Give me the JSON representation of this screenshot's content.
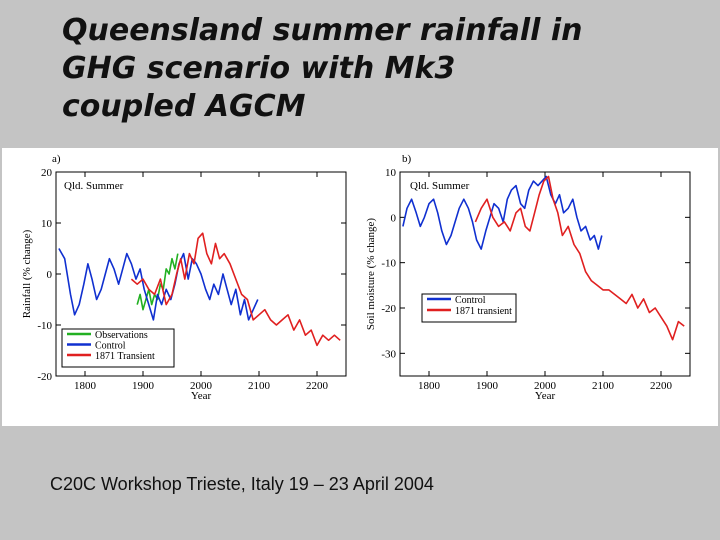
{
  "slide": {
    "title_lines": [
      "Queensland summer rainfall in",
      "GHG scenario with Mk3",
      "coupled AGCM"
    ],
    "footer": "C20C Workshop Trieste, Italy 19 – 23 April 2004"
  },
  "colors": {
    "Observations": "#22b022",
    "Control": "#1030d0",
    "1871 Transient": "#e02020",
    "1871 transient": "#e02020"
  },
  "chart_data": [
    {
      "type": "line",
      "panel_label": "a)",
      "region_label": "Qld. Summer",
      "xlabel": "Year",
      "ylabel": "Rainfall (% change)",
      "xlim": [
        1750,
        2250
      ],
      "ylim": [
        -20,
        20
      ],
      "xticks": [
        1800,
        1900,
        2000,
        2100,
        2200
      ],
      "yticks": [
        20,
        10,
        0,
        -10,
        -20
      ],
      "legend_position": "bottom-left",
      "series": [
        {
          "name": "Observations",
          "color": "#22b022",
          "x": [
            1890,
            1895,
            1900,
            1905,
            1910,
            1915,
            1920,
            1925,
            1930,
            1935,
            1940,
            1945,
            1950,
            1955,
            1960
          ],
          "y": [
            -6,
            -4,
            -7,
            -5,
            -3,
            -6,
            -4,
            -5,
            -2,
            -3,
            1,
            0,
            3,
            1,
            4
          ]
        },
        {
          "name": "Control",
          "color": "#1030d0",
          "x": [
            1755,
            1765,
            1775,
            1782,
            1790,
            1798,
            1805,
            1812,
            1820,
            1828,
            1835,
            1842,
            1850,
            1858,
            1865,
            1872,
            1880,
            1888,
            1895,
            1902,
            1910,
            1918,
            1925,
            1932,
            1940,
            1948,
            1955,
            1962,
            1970,
            1978,
            1985,
            1992,
            2000,
            2008,
            2015,
            2022,
            2030,
            2038,
            2045,
            2052,
            2060,
            2068,
            2075,
            2082,
            2090,
            2098
          ],
          "y": [
            5,
            3,
            -4,
            -8,
            -6,
            -2,
            2,
            -1,
            -5,
            -3,
            0,
            3,
            1,
            -2,
            1,
            4,
            2,
            -1,
            1,
            -3,
            -6,
            -9,
            -4,
            -6,
            -3,
            -5,
            -2,
            2,
            4,
            -1,
            3,
            2,
            0,
            -3,
            -5,
            -2,
            -4,
            0,
            -3,
            -6,
            -3,
            -8,
            -5,
            -9,
            -7,
            -5
          ]
        },
        {
          "name": "1871 Transient",
          "color": "#e02020",
          "x": [
            1880,
            1890,
            1900,
            1910,
            1920,
            1930,
            1940,
            1950,
            1958,
            1965,
            1972,
            1980,
            1988,
            1995,
            2003,
            2010,
            2018,
            2025,
            2032,
            2040,
            2050,
            2060,
            2070,
            2080,
            2090,
            2100,
            2110,
            2120,
            2130,
            2140,
            2150,
            2160,
            2170,
            2180,
            2190,
            2200,
            2210,
            2220,
            2230,
            2240
          ],
          "y": [
            -1,
            -2,
            -1,
            -3,
            -4,
            -1,
            -6,
            -4,
            0,
            3,
            -1,
            4,
            2,
            7,
            8,
            4,
            2,
            6,
            3,
            4,
            2,
            -1,
            -4,
            -5,
            -9,
            -8,
            -7,
            -9,
            -10,
            -9,
            -8,
            -11,
            -9,
            -12,
            -11,
            -14,
            -12,
            -13,
            -12,
            -13
          ]
        }
      ]
    },
    {
      "type": "line",
      "panel_label": "b)",
      "region_label": "Qld. Summer",
      "xlabel": "Year",
      "ylabel": "Soil moisture (% change)",
      "xlim": [
        1750,
        2250
      ],
      "ylim": [
        -35,
        10
      ],
      "xticks": [
        1800,
        1900,
        2000,
        2100,
        2200
      ],
      "yticks": [
        10,
        0,
        -10,
        -20,
        -30
      ],
      "legend_position": "middle-right",
      "series": [
        {
          "name": "Control",
          "color": "#1030d0",
          "x": [
            1755,
            1762,
            1770,
            1778,
            1785,
            1792,
            1800,
            1808,
            1815,
            1822,
            1830,
            1838,
            1845,
            1852,
            1860,
            1868,
            1875,
            1882,
            1890,
            1898,
            1905,
            1912,
            1920,
            1928,
            1935,
            1942,
            1950,
            1958,
            1965,
            1972,
            1980,
            1988,
            1995,
            2002,
            2010,
            2018,
            2025,
            2032,
            2040,
            2048,
            2055,
            2062,
            2070,
            2078,
            2085,
            2092,
            2098
          ],
          "y": [
            -2,
            2,
            4,
            1,
            -2,
            0,
            3,
            4,
            1,
            -3,
            -6,
            -4,
            -1,
            2,
            4,
            2,
            -1,
            -5,
            -7,
            -3,
            0,
            3,
            2,
            -1,
            4,
            6,
            7,
            3,
            2,
            6,
            8,
            7,
            8,
            9,
            5,
            3,
            5,
            1,
            2,
            4,
            0,
            -3,
            -2,
            -5,
            -4,
            -7,
            -4
          ]
        },
        {
          "name": "1871 transient",
          "color": "#e02020",
          "x": [
            1880,
            1890,
            1900,
            1910,
            1920,
            1930,
            1940,
            1950,
            1958,
            1966,
            1974,
            1982,
            1990,
            1998,
            2006,
            2014,
            2022,
            2030,
            2040,
            2050,
            2060,
            2070,
            2080,
            2090,
            2100,
            2110,
            2120,
            2130,
            2140,
            2150,
            2160,
            2170,
            2180,
            2190,
            2200,
            2210,
            2220,
            2230,
            2240
          ],
          "y": [
            -1,
            2,
            4,
            0,
            -2,
            -1,
            -3,
            1,
            2,
            -2,
            -3,
            1,
            5,
            8,
            9,
            4,
            1,
            -4,
            -2,
            -6,
            -8,
            -12,
            -14,
            -15,
            -16,
            -16,
            -17,
            -18,
            -19,
            -17,
            -20,
            -18,
            -21,
            -20,
            -22,
            -24,
            -27,
            -23,
            -24
          ]
        }
      ]
    }
  ]
}
